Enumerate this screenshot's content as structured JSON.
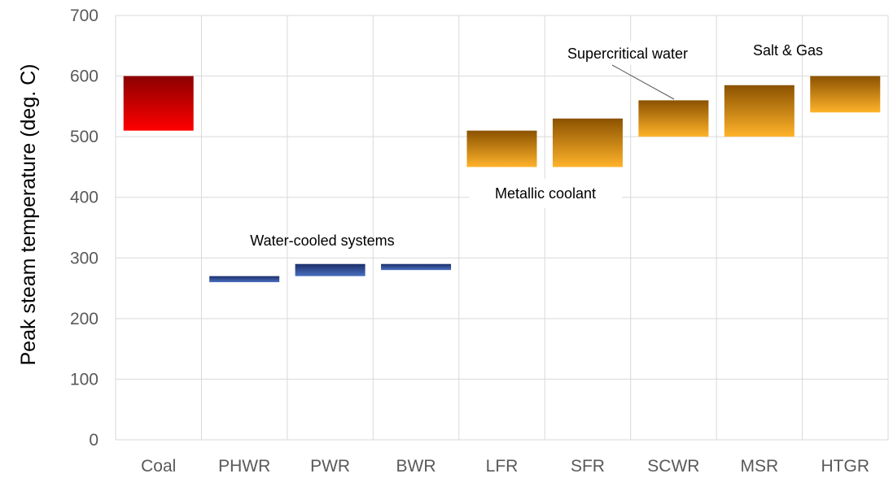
{
  "chart_data": {
    "type": "bar",
    "subtype": "floating-range",
    "title": "",
    "xlabel": "",
    "ylabel": "Peak steam temperature (deg. C)",
    "ylim": [
      0,
      700
    ],
    "yticks": [
      "0",
      "100",
      "200",
      "300",
      "400",
      "500",
      "600",
      "700"
    ],
    "grid": true,
    "legend": "none",
    "categories": [
      "Coal",
      "PHWR",
      "PWR",
      "BWR",
      "LFR",
      "SFR",
      "SCWR",
      "MSR",
      "HTGR"
    ],
    "ranges": [
      {
        "category": "Coal",
        "low": 510,
        "high": 600,
        "group": "coal"
      },
      {
        "category": "PHWR",
        "low": 260,
        "high": 270,
        "group": "water"
      },
      {
        "category": "PWR",
        "low": 270,
        "high": 290,
        "group": "water"
      },
      {
        "category": "BWR",
        "low": 280,
        "high": 290,
        "group": "water"
      },
      {
        "category": "LFR",
        "low": 450,
        "high": 510,
        "group": "advanced"
      },
      {
        "category": "SFR",
        "low": 450,
        "high": 530,
        "group": "advanced"
      },
      {
        "category": "SCWR",
        "low": 500,
        "high": 560,
        "group": "advanced"
      },
      {
        "category": "MSR",
        "low": 500,
        "high": 585,
        "group": "advanced"
      },
      {
        "category": "HTGR",
        "low": 540,
        "high": 600,
        "group": "advanced"
      }
    ],
    "group_colors": {
      "coal": {
        "top": "#8b0000",
        "bottom": "#ff0000"
      },
      "water": {
        "top": "#1c2f6a",
        "bottom": "#4a6fc0"
      },
      "advanced": {
        "top": "#8b5200",
        "bottom": "#ffb32a"
      }
    },
    "annotations": [
      {
        "text": "Water-cooled systems",
        "near": "PWR"
      },
      {
        "text": "Metallic coolant",
        "near": "LFR-SFR"
      },
      {
        "text": "Supercritical water",
        "near": "SCWR"
      },
      {
        "text": "Salt & Gas",
        "near": "MSR-HTGR"
      }
    ]
  }
}
